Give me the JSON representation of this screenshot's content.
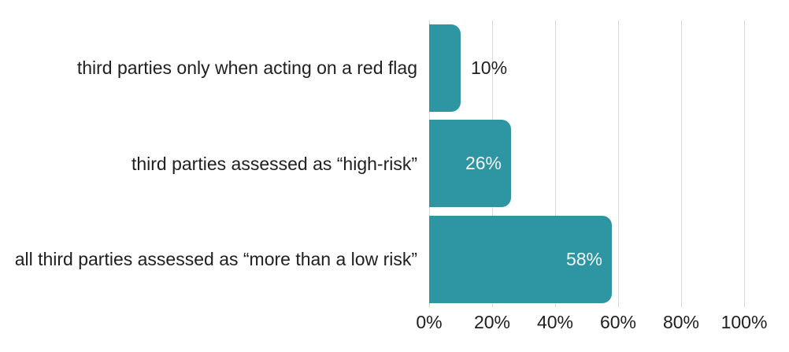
{
  "chart_data": {
    "type": "bar",
    "orientation": "horizontal",
    "title": "",
    "categories": [
      "third parties only when acting on a red flag",
      "third parties assessed as “high-risk”",
      "all third parties assessed as “more than a low risk”"
    ],
    "values": [
      10,
      26,
      58
    ],
    "value_labels": [
      "10%",
      "26%",
      "58%"
    ],
    "x_ticks": [
      "0%",
      "20%",
      "40%",
      "60%",
      "80%",
      "100%"
    ],
    "x_tick_values": [
      0,
      20,
      40,
      60,
      80,
      100
    ],
    "xlim": [
      0,
      100
    ],
    "grid": true,
    "legend": false,
    "bar_color": "#2e96a2",
    "gridline_color": "#d9d9d9",
    "text_color": "#202020",
    "inside_label_color": "#f7f7f7",
    "background_color": "#ffffff"
  }
}
